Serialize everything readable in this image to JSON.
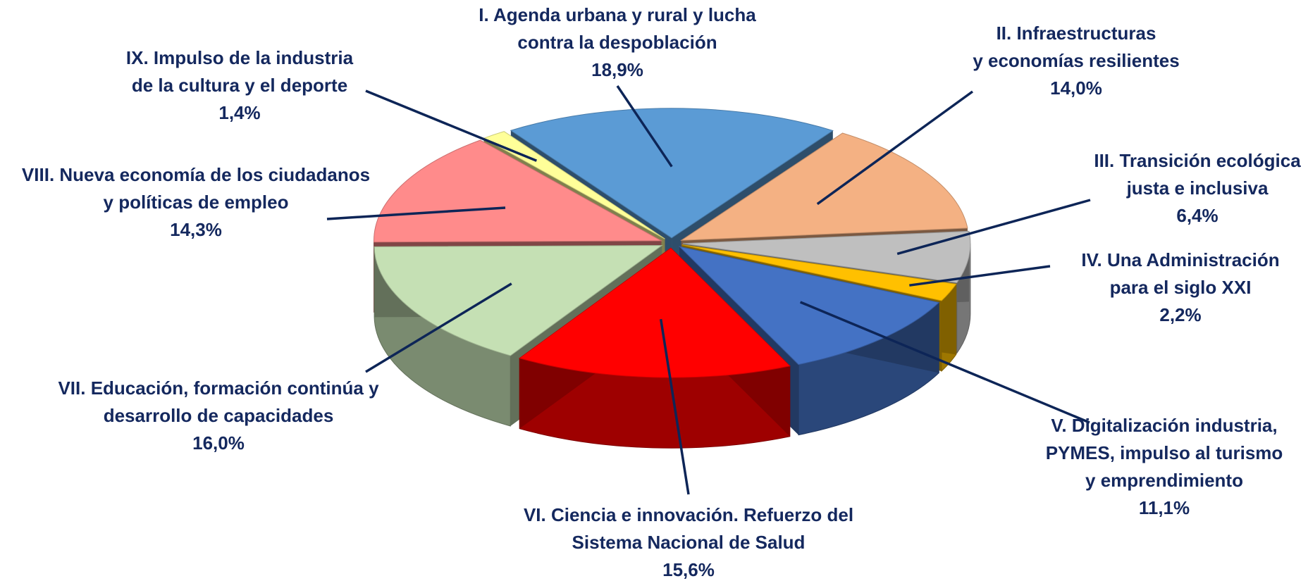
{
  "chart_data": {
    "type": "pie3d",
    "categories": [
      "I. Agenda urbana y rural y lucha\ncontra la despoblación",
      "II. Infraestructuras\ny economías resilientes",
      "III. Transición ecológica\njusta e inclusiva",
      "IV. Una Administración\npara el siglo XXI",
      "V. Digitalización industria,\nPYMES, impulso al turismo\ny emprendimiento",
      "VI. Ciencia e innovación. Refuerzo del\nSistema Nacional de Salud",
      "VII. Educación, formación continúa y\ndesarrollo de capacidades",
      "VIII. Nueva economía de los ciudadanos\ny políticas de empleo",
      "IX. Impulso de la industria\nde la cultura y el deporte"
    ],
    "values": [
      18.9,
      14.0,
      6.4,
      2.2,
      11.1,
      15.6,
      16.0,
      14.3,
      1.4
    ],
    "value_labels": [
      "18,9%",
      "14,0%",
      "6,4%",
      "2,2%",
      "11,1%",
      "15,6%",
      "16,0%",
      "14,3%",
      "1,4%"
    ],
    "colors": [
      "#5b9bd5",
      "#f4b183",
      "#bfbfbf",
      "#ffc000",
      "#4472c4",
      "#ff0000",
      "#c5e0b4",
      "#ff8b8b",
      "#ffff99"
    ]
  }
}
